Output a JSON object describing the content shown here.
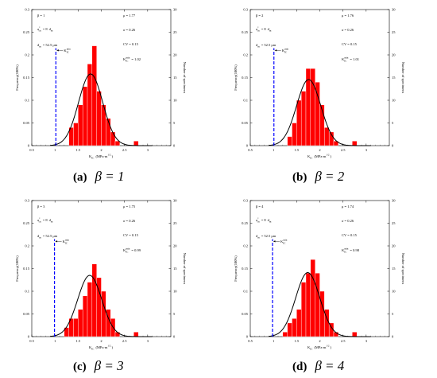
{
  "chart_data": [
    {
      "type": "bar",
      "caption_label": "(a)",
      "caption_math": "β = 1",
      "ann": {
        "beta": "β = 1",
        "a": "a",
        "a_sub": "cn",
        "a_sup": "*",
        "a_rel": " = 8",
        "d": "d",
        "d_sub": "m",
        "dm_line": "= 52.5 μm",
        "mu": "μ = 1.77",
        "sigma": "σ = 0.26",
        "cv": "CV = 0.15",
        "kmin_val": "= 1.02"
      },
      "kmin": 1.02,
      "mu": 1.77,
      "sigma": 0.26,
      "bins": [
        1.35,
        1.45,
        1.55,
        1.65,
        1.75,
        1.85,
        1.95,
        2.05,
        2.15,
        2.25,
        2.35,
        2.75
      ],
      "values": [
        4,
        5,
        9,
        13,
        18,
        22,
        12,
        9,
        6,
        3,
        1,
        1
      ],
      "xlim": [
        0.5,
        3.5
      ],
      "ylim_left": [
        0,
        0.3
      ],
      "ylim_right": [
        0,
        30
      ]
    },
    {
      "type": "bar",
      "caption_label": "(b)",
      "caption_math": "β = 2",
      "ann": {
        "beta": "β = 2",
        "a": "a",
        "a_sub": "cn",
        "a_sup": "*",
        "a_rel": " = 8",
        "d": "d",
        "d_sub": "m",
        "dm_line": "= 52.5 μm",
        "mu": "μ = 1.76",
        "sigma": "σ = 0.26",
        "cv": "CV = 0.15",
        "kmin_val": "= 1.01"
      },
      "kmin": 1.01,
      "mu": 1.76,
      "sigma": 0.26,
      "bins": [
        1.35,
        1.45,
        1.55,
        1.65,
        1.75,
        1.85,
        1.95,
        2.05,
        2.15,
        2.25,
        2.35,
        2.75
      ],
      "values": [
        2,
        5,
        10,
        12,
        17,
        17,
        14,
        9,
        4,
        3,
        1,
        1
      ],
      "xlim": [
        0.5,
        3.5
      ],
      "ylim_left": [
        0,
        0.3
      ],
      "ylim_right": [
        0,
        30
      ]
    },
    {
      "type": "bar",
      "caption_label": "(c)",
      "caption_math": "β = 3",
      "ann": {
        "beta": "β = 3",
        "a": "a",
        "a_sub": "cn",
        "a_sup": "*",
        "a_rel": " = 8",
        "d": "d",
        "d_sub": "m",
        "dm_line": "= 52.5 μm",
        "mu": "μ = 1.75",
        "sigma": "σ = 0.26",
        "cv": "CV = 0.15",
        "kmin_val": "= 0.99"
      },
      "kmin": 0.99,
      "mu": 1.75,
      "sigma": 0.26,
      "bins": [
        1.25,
        1.35,
        1.45,
        1.55,
        1.65,
        1.75,
        1.85,
        1.95,
        2.05,
        2.15,
        2.25,
        2.35,
        2.75
      ],
      "values": [
        2,
        4,
        4,
        6,
        9,
        12,
        16,
        13,
        10,
        6,
        4,
        1,
        1
      ],
      "xlim": [
        0.5,
        3.5
      ],
      "ylim_left": [
        0,
        0.3
      ],
      "ylim_right": [
        0,
        30
      ]
    },
    {
      "type": "bar",
      "caption_label": "(d)",
      "caption_math": "β = 4",
      "ann": {
        "beta": "β = 4",
        "a": "a",
        "a_sub": "cn",
        "a_sup": "*",
        "a_rel": " = 8",
        "d": "d",
        "d_sub": "m",
        "dm_line": "= 52.5 μm",
        "mu": "μ = 1.74",
        "sigma": "σ = 0.26",
        "cv": "CV = 0.15",
        "kmin_val": "= 0.98"
      },
      "kmin": 0.98,
      "mu": 1.74,
      "sigma": 0.26,
      "bins": [
        1.25,
        1.35,
        1.45,
        1.55,
        1.65,
        1.75,
        1.85,
        1.95,
        2.05,
        2.15,
        2.25,
        2.35,
        2.75
      ],
      "values": [
        1,
        3,
        4,
        6,
        12,
        14,
        17,
        14,
        10,
        6,
        3,
        1,
        1
      ],
      "xlim": [
        0.5,
        3.5
      ],
      "ylim_left": [
        0,
        0.3
      ],
      "ylim_right": [
        0,
        30
      ]
    }
  ],
  "common": {
    "ylabel_left": "Frequency(100%)",
    "ylabel_right": "Number of specimens",
    "xlabel_k": "K",
    "xlabel_sub": "IC",
    "xlabel_unit": "(MPa·m",
    "xlabel_sup": "1/2",
    "xlabel_close": ")",
    "kmin_k": "K",
    "kmin_sub": "IC",
    "kmin_sup": "min",
    "xticks": [
      "0.5",
      "1",
      "1.5",
      "2",
      "2.5",
      "3"
    ],
    "yticks_left": [
      "0",
      "0.05",
      "0.1",
      "0.15",
      "0.2",
      "0.25",
      "0.3"
    ],
    "yticks_right": [
      "0",
      "5",
      "10",
      "15",
      "20",
      "25",
      "30"
    ]
  },
  "colors": {
    "bar": "#ff0000",
    "bar_edge": "#ffffff",
    "curve": "#000000",
    "kmin_line": "#0000ff"
  }
}
